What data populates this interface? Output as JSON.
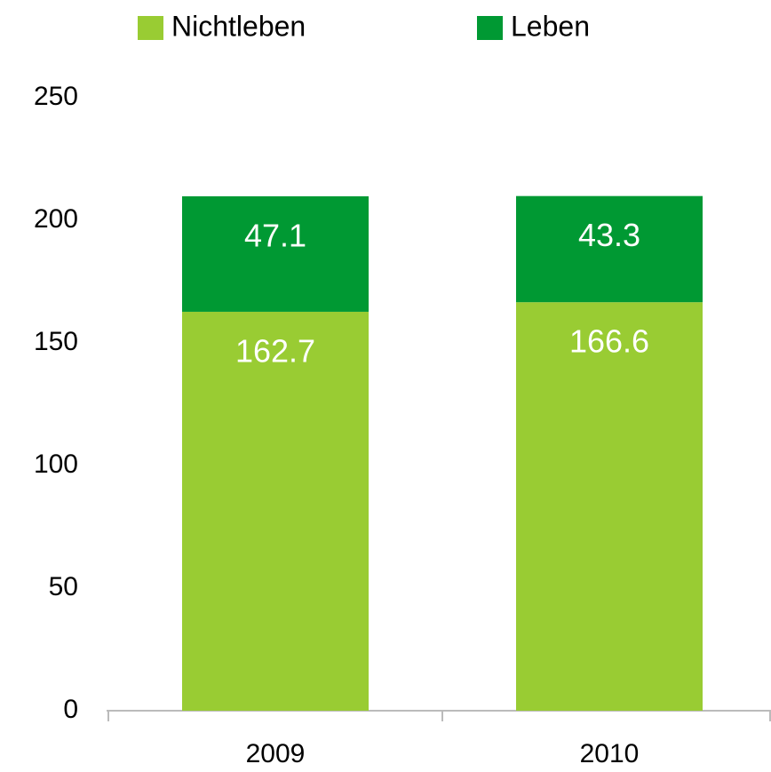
{
  "chart_data": {
    "type": "stacked_bar",
    "categories": [
      "2009",
      "2010"
    ],
    "series": [
      {
        "name": "Nichtleben",
        "color": "#99cc33",
        "values": [
          162.7,
          166.6
        ]
      },
      {
        "name": "Leben",
        "color": "#009933",
        "values": [
          47.1,
          43.3
        ]
      }
    ],
    "ylim": [
      0,
      250
    ],
    "yticks": [
      0,
      50,
      100,
      150,
      200,
      250
    ],
    "grid": false,
    "legend": "top"
  }
}
